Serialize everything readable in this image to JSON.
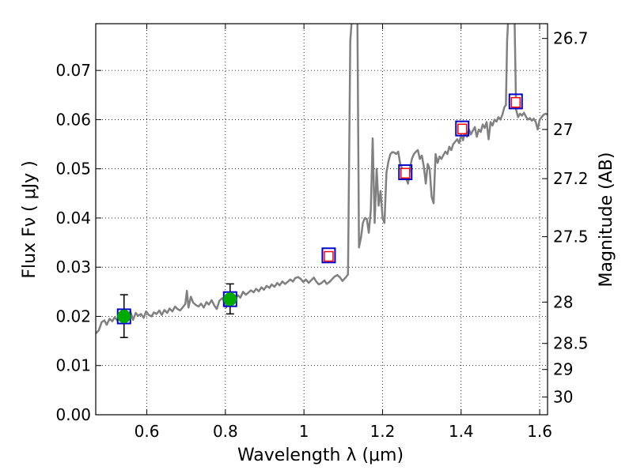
{
  "chart_data": {
    "type": "line",
    "title": "",
    "xlabel": "Wavelength  λ (μm)",
    "ylabel": "Flux  Fν  ( μJy )",
    "ylabel_right": "Magnitude (AB)",
    "xlim": [
      0.47,
      1.62
    ],
    "ylim": [
      0.0,
      0.0795
    ],
    "grid": true,
    "x_ticks": [
      0.6,
      0.8,
      1.0,
      1.2,
      1.4,
      1.6
    ],
    "x_tick_labels": [
      "0.6",
      "0.8",
      "1",
      "1.2",
      "1.4",
      "1.6"
    ],
    "y_ticks": [
      0.0,
      0.01,
      0.02,
      0.03,
      0.04,
      0.05,
      0.06,
      0.07
    ],
    "y_tick_labels": [
      "0.00",
      "0.01",
      "0.02",
      "0.03",
      "0.04",
      "0.05",
      "0.06",
      "0.07"
    ],
    "right_ticks": [
      {
        "flux": 0.0765,
        "label": "26.7"
      },
      {
        "flux": 0.058,
        "label": "27"
      },
      {
        "flux": 0.048,
        "label": "27.2"
      },
      {
        "flux": 0.0362,
        "label": "27.5"
      },
      {
        "flux": 0.0229,
        "label": "28"
      },
      {
        "flux": 0.0145,
        "label": "28.5"
      },
      {
        "flux": 0.0092,
        "label": "29"
      },
      {
        "flux": 0.0036,
        "label": "30"
      }
    ],
    "series": [
      {
        "name": "model SED",
        "kind": "line",
        "color": "#808080",
        "x": [
          0.47,
          0.478,
          0.485,
          0.492,
          0.498,
          0.505,
          0.512,
          0.518,
          0.525,
          0.532,
          0.538,
          0.545,
          0.552,
          0.558,
          0.565,
          0.572,
          0.578,
          0.585,
          0.592,
          0.598,
          0.605,
          0.612,
          0.618,
          0.625,
          0.632,
          0.638,
          0.645,
          0.652,
          0.658,
          0.665,
          0.672,
          0.678,
          0.685,
          0.692,
          0.698,
          0.702,
          0.706,
          0.712,
          0.718,
          0.725,
          0.732,
          0.738,
          0.745,
          0.752,
          0.758,
          0.765,
          0.772,
          0.778,
          0.785,
          0.792,
          0.798,
          0.802,
          0.806,
          0.812,
          0.818,
          0.825,
          0.832,
          0.838,
          0.845,
          0.852,
          0.858,
          0.865,
          0.872,
          0.878,
          0.885,
          0.892,
          0.898,
          0.905,
          0.912,
          0.918,
          0.925,
          0.932,
          0.938,
          0.945,
          0.952,
          0.958,
          0.965,
          0.972,
          0.978,
          0.985,
          0.992,
          0.998,
          1.005,
          1.012,
          1.018,
          1.025,
          1.032,
          1.038,
          1.045,
          1.052,
          1.058,
          1.065,
          1.072,
          1.078,
          1.085,
          1.092,
          1.098,
          1.105,
          1.112,
          1.118,
          1.122,
          1.125,
          1.127,
          1.13,
          1.133,
          1.136,
          1.14,
          1.145,
          1.15,
          1.155,
          1.16,
          1.165,
          1.17,
          1.175,
          1.18,
          1.185,
          1.19,
          1.195,
          1.2,
          1.205,
          1.21,
          1.215,
          1.22,
          1.225,
          1.23,
          1.235,
          1.24,
          1.245,
          1.25,
          1.255,
          1.26,
          1.265,
          1.27,
          1.275,
          1.28,
          1.285,
          1.29,
          1.295,
          1.3,
          1.305,
          1.31,
          1.315,
          1.32,
          1.325,
          1.33,
          1.335,
          1.34,
          1.345,
          1.35,
          1.355,
          1.36,
          1.365,
          1.37,
          1.375,
          1.38,
          1.385,
          1.39,
          1.395,
          1.4,
          1.405,
          1.41,
          1.415,
          1.42,
          1.425,
          1.43,
          1.435,
          1.44,
          1.445,
          1.45,
          1.455,
          1.46,
          1.465,
          1.47,
          1.475,
          1.48,
          1.485,
          1.49,
          1.495,
          1.5,
          1.505,
          1.51,
          1.514,
          1.517,
          1.52,
          1.524,
          1.528,
          1.532,
          1.536,
          1.54,
          1.545,
          1.55,
          1.555,
          1.56,
          1.565,
          1.57,
          1.575,
          1.58,
          1.585,
          1.59,
          1.595,
          1.6,
          1.605,
          1.61,
          1.615,
          1.62
        ],
        "values": [
          0.0165,
          0.0172,
          0.0188,
          0.0192,
          0.0183,
          0.0195,
          0.019,
          0.0198,
          0.0192,
          0.02,
          0.0196,
          0.0205,
          0.0198,
          0.021,
          0.0193,
          0.0207,
          0.0201,
          0.0205,
          0.0197,
          0.021,
          0.0203,
          0.02,
          0.0208,
          0.0205,
          0.0212,
          0.0203,
          0.0213,
          0.0207,
          0.0216,
          0.021,
          0.022,
          0.0215,
          0.0212,
          0.0219,
          0.0225,
          0.0252,
          0.0218,
          0.024,
          0.0228,
          0.0223,
          0.022,
          0.0226,
          0.0218,
          0.0229,
          0.0224,
          0.0233,
          0.0222,
          0.0215,
          0.0232,
          0.0237,
          0.0228,
          0.0218,
          0.024,
          0.0236,
          0.0226,
          0.0235,
          0.0243,
          0.0238,
          0.025,
          0.0244,
          0.0248,
          0.0253,
          0.0249,
          0.0256,
          0.0251,
          0.0259,
          0.0254,
          0.0262,
          0.0258,
          0.0265,
          0.026,
          0.0268,
          0.0263,
          0.0271,
          0.0266,
          0.027,
          0.0275,
          0.0271,
          0.0278,
          0.028,
          0.0276,
          0.027,
          0.0275,
          0.0268,
          0.0273,
          0.0279,
          0.027,
          0.0265,
          0.0268,
          0.0273,
          0.0266,
          0.027,
          0.0276,
          0.0281,
          0.0284,
          0.0279,
          0.0272,
          0.0278,
          0.0285,
          0.076,
          0.0805,
          0.0805,
          0.0805,
          0.0805,
          0.0805,
          0.0805,
          0.034,
          0.036,
          0.039,
          0.04,
          0.0398,
          0.037,
          0.0415,
          0.0562,
          0.039,
          0.05,
          0.0425,
          0.0455,
          0.04,
          0.039,
          0.0492,
          0.0515,
          0.053,
          0.0534,
          0.0533,
          0.053,
          0.0535,
          0.051,
          0.05,
          0.049,
          0.048,
          0.047,
          0.0502,
          0.0521,
          0.053,
          0.0535,
          0.0538,
          0.052,
          0.0527,
          0.0505,
          0.047,
          0.051,
          0.05,
          0.0443,
          0.043,
          0.053,
          0.0512,
          0.0525,
          0.052,
          0.0528,
          0.0535,
          0.053,
          0.0545,
          0.0538,
          0.055,
          0.0555,
          0.056,
          0.0552,
          0.057,
          0.0558,
          0.0575,
          0.0565,
          0.058,
          0.057,
          0.0578,
          0.0585,
          0.0565,
          0.058,
          0.0575,
          0.059,
          0.0583,
          0.0595,
          0.056,
          0.0595,
          0.0588,
          0.06,
          0.0596,
          0.0605,
          0.06,
          0.061,
          0.0625,
          0.063,
          0.076,
          0.0805,
          0.0805,
          0.0805,
          0.0805,
          0.0805,
          0.062,
          0.0605,
          0.0612,
          0.0608,
          0.0614,
          0.0606,
          0.06,
          0.0603,
          0.0598,
          0.0602,
          0.0595,
          0.058,
          0.06,
          0.0605,
          0.061,
          0.0612,
          0.061
        ]
      },
      {
        "name": "photometry (green)",
        "kind": "points",
        "color": "#00aa00",
        "x": [
          0.542,
          0.812
        ],
        "values": [
          0.02,
          0.0235
        ],
        "err_low": [
          0.0157,
          0.0205
        ],
        "err_high": [
          0.0244,
          0.0266
        ]
      },
      {
        "name": "model boxes (blue)",
        "kind": "squares",
        "color": "#0000cc",
        "x": [
          0.542,
          0.812,
          1.063,
          1.258,
          1.403,
          1.539
        ],
        "values": [
          0.02,
          0.0235,
          0.0324,
          0.0493,
          0.0582,
          0.0637
        ]
      },
      {
        "name": "predicted (red)",
        "kind": "squares",
        "color": "#ff0000",
        "x": [
          1.063,
          1.258,
          1.403,
          1.539
        ],
        "values": [
          0.0322,
          0.0491,
          0.0581,
          0.0635
        ]
      }
    ]
  }
}
